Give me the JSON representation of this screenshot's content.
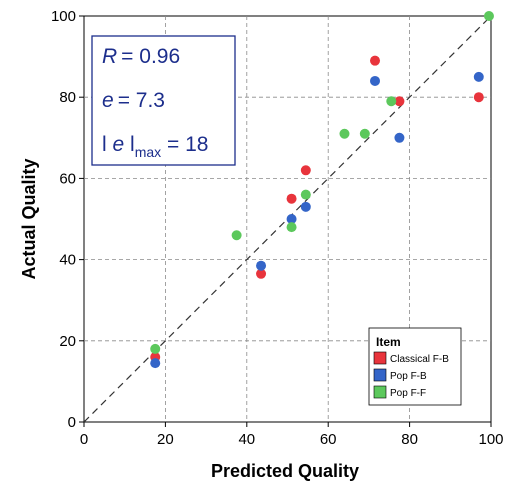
{
  "chart_data": {
    "type": "scatter",
    "title": "",
    "xlabel": "Predicted Quality",
    "ylabel": "Actual Quality",
    "xlim": [
      0,
      100
    ],
    "ylim": [
      0,
      100
    ],
    "xticks": [
      0,
      20,
      40,
      60,
      80,
      100
    ],
    "yticks": [
      0,
      20,
      40,
      60,
      80,
      100
    ],
    "grid": true,
    "reference_line": "y = x (dashed)",
    "stats": {
      "r_symbol": "R",
      "r_value": "= 0.96",
      "e_symbol": "e",
      "e_value": "= 7.3",
      "emax_prefix": "l ",
      "emax_symbol": "e",
      "emax_mid": " l",
      "emax_sub": "max",
      "emax_value": " = 18"
    },
    "legend": {
      "title": "Item",
      "position": "bottom-right"
    },
    "series": [
      {
        "name": "Classical F-B",
        "color": "#e8343c",
        "points": [
          [
            17.5,
            16
          ],
          [
            43.5,
            36.5
          ],
          [
            51,
            55
          ],
          [
            54.5,
            62
          ],
          [
            71.5,
            89
          ],
          [
            77.5,
            79
          ],
          [
            97,
            80
          ]
        ]
      },
      {
        "name": "Pop F-B",
        "color": "#3465c8",
        "points": [
          [
            17.5,
            14.5
          ],
          [
            43.5,
            38.5
          ],
          [
            51,
            50
          ],
          [
            54.5,
            53
          ],
          [
            71.5,
            84
          ],
          [
            77.5,
            70
          ],
          [
            97,
            85
          ]
        ]
      },
      {
        "name": "Pop F-F",
        "color": "#5cc85c",
        "points": [
          [
            17.5,
            18
          ],
          [
            37.5,
            46
          ],
          [
            51,
            48
          ],
          [
            54.5,
            56
          ],
          [
            64,
            71
          ],
          [
            69,
            71
          ],
          [
            75.5,
            79
          ],
          [
            99.5,
            100
          ]
        ]
      }
    ]
  }
}
